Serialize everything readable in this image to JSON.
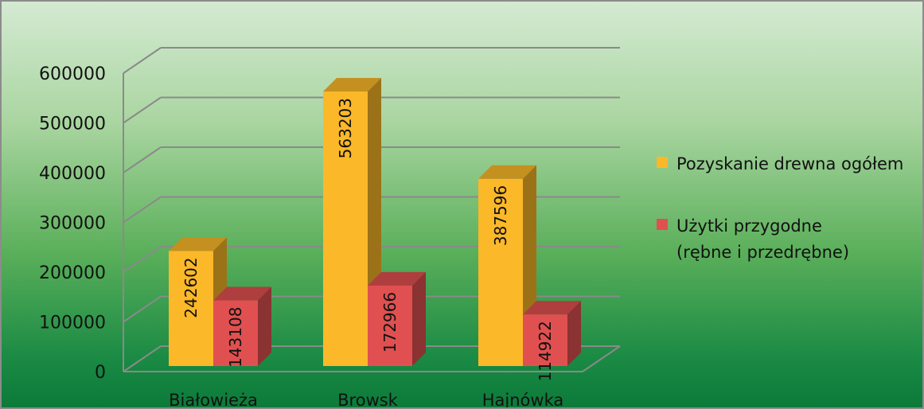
{
  "chart_data": {
    "type": "bar",
    "title": "",
    "xlabel": "",
    "ylabel": "",
    "categories": [
      "Białowieża",
      "Browsk",
      "Hajnówka"
    ],
    "series": [
      {
        "name": "Pozyskanie drewna ogółem",
        "values": [
          242602,
          563203,
          387596
        ],
        "color": "#fbb829"
      },
      {
        "name": "Użytki przygodne (rębne i przedrębne)",
        "name_lines": [
          "Użytki przygodne",
          "(rębne i przedrębne)"
        ],
        "values": [
          143108,
          172966,
          114922
        ],
        "color": "#e05050"
      }
    ],
    "ylim": [
      0,
      600000
    ],
    "yticks": [
      "0",
      "100000",
      "200000",
      "300000",
      "400000",
      "500000",
      "600000"
    ],
    "grid": true,
    "legend_position": "right",
    "three_d": true
  }
}
